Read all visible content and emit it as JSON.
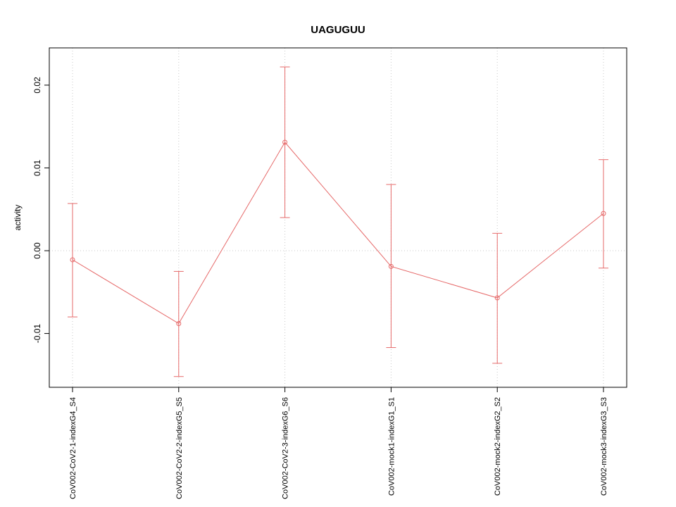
{
  "title": "UAGUGUU",
  "ylabel": "activity",
  "chart_data": {
    "type": "line",
    "title": "UAGUGUU",
    "xlabel": "",
    "ylabel": "activity",
    "categories": [
      "CoV002-CoV2-1-indexG4_S4",
      "CoV002-CoV2-2-indexG5_S5",
      "CoV002-CoV2-3-indexG6_S6",
      "CoV002-mock1-indexG1_S1",
      "CoV002-mock2-indexG2_S2",
      "CoV002-mock3-indexG3_S3"
    ],
    "series": [
      {
        "name": "activity",
        "values": [
          -0.0011,
          -0.0088,
          0.0131,
          -0.0019,
          -0.0057,
          0.0045
        ],
        "error_low": [
          -0.008,
          -0.0152,
          0.004,
          -0.0117,
          -0.0136,
          -0.0021
        ],
        "error_high": [
          0.0057,
          -0.0025,
          0.0222,
          0.008,
          0.0021,
          0.011
        ]
      }
    ],
    "yticks": [
      -0.01,
      0,
      0.01,
      0.02
    ],
    "ytick_labels": [
      "-0.01",
      "0.00",
      "0.01",
      "0.02"
    ],
    "ylim": [
      -0.0165,
      0.0245
    ],
    "grid": true,
    "grid_style": "dotted vertical at each category, dotted horizontal at zero",
    "legend": "none",
    "marker": "open-circle",
    "colors": {
      "line": "#e66a6a",
      "grid": "#c8c8c8",
      "axis": "#000000",
      "background": "#ffffff"
    }
  }
}
